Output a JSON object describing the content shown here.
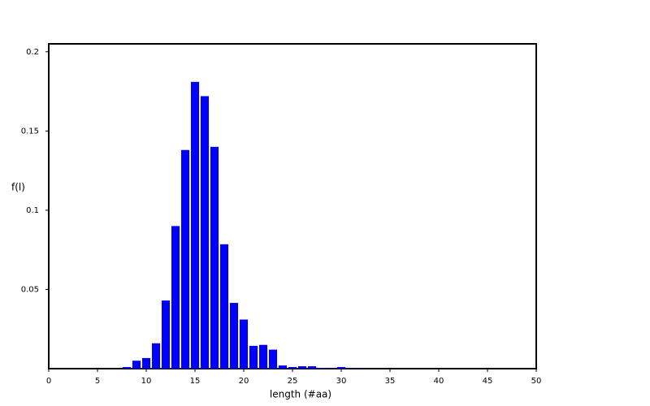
{
  "chart_data": {
    "type": "bar",
    "x_label": "length (#aa)",
    "y_label": "f(l)",
    "x": [
      8,
      9,
      10,
      11,
      12,
      13,
      14,
      15,
      16,
      17,
      18,
      19,
      20,
      21,
      22,
      23,
      24,
      25,
      26,
      27,
      28,
      29,
      30,
      31,
      32
    ],
    "values": [
      0.001,
      0.005,
      0.0067,
      0.016,
      0.043,
      0.09,
      0.138,
      0.181,
      0.172,
      0.14,
      0.0785,
      0.0415,
      0.031,
      0.0144,
      0.015,
      0.012,
      0.002,
      0.001,
      0.0015,
      0.0015,
      0.0005,
      0.0003,
      0.001,
      0.0003,
      0.0002
    ],
    "color": "#0000ff",
    "xlim": [
      0,
      50
    ],
    "xticks": [
      0,
      5,
      10,
      15,
      20,
      25,
      30,
      35,
      40,
      45,
      50
    ],
    "ylim": [
      0,
      0.205
    ],
    "yticks": [
      0.05,
      0.1,
      0.15,
      0.2
    ],
    "grid": false
  }
}
